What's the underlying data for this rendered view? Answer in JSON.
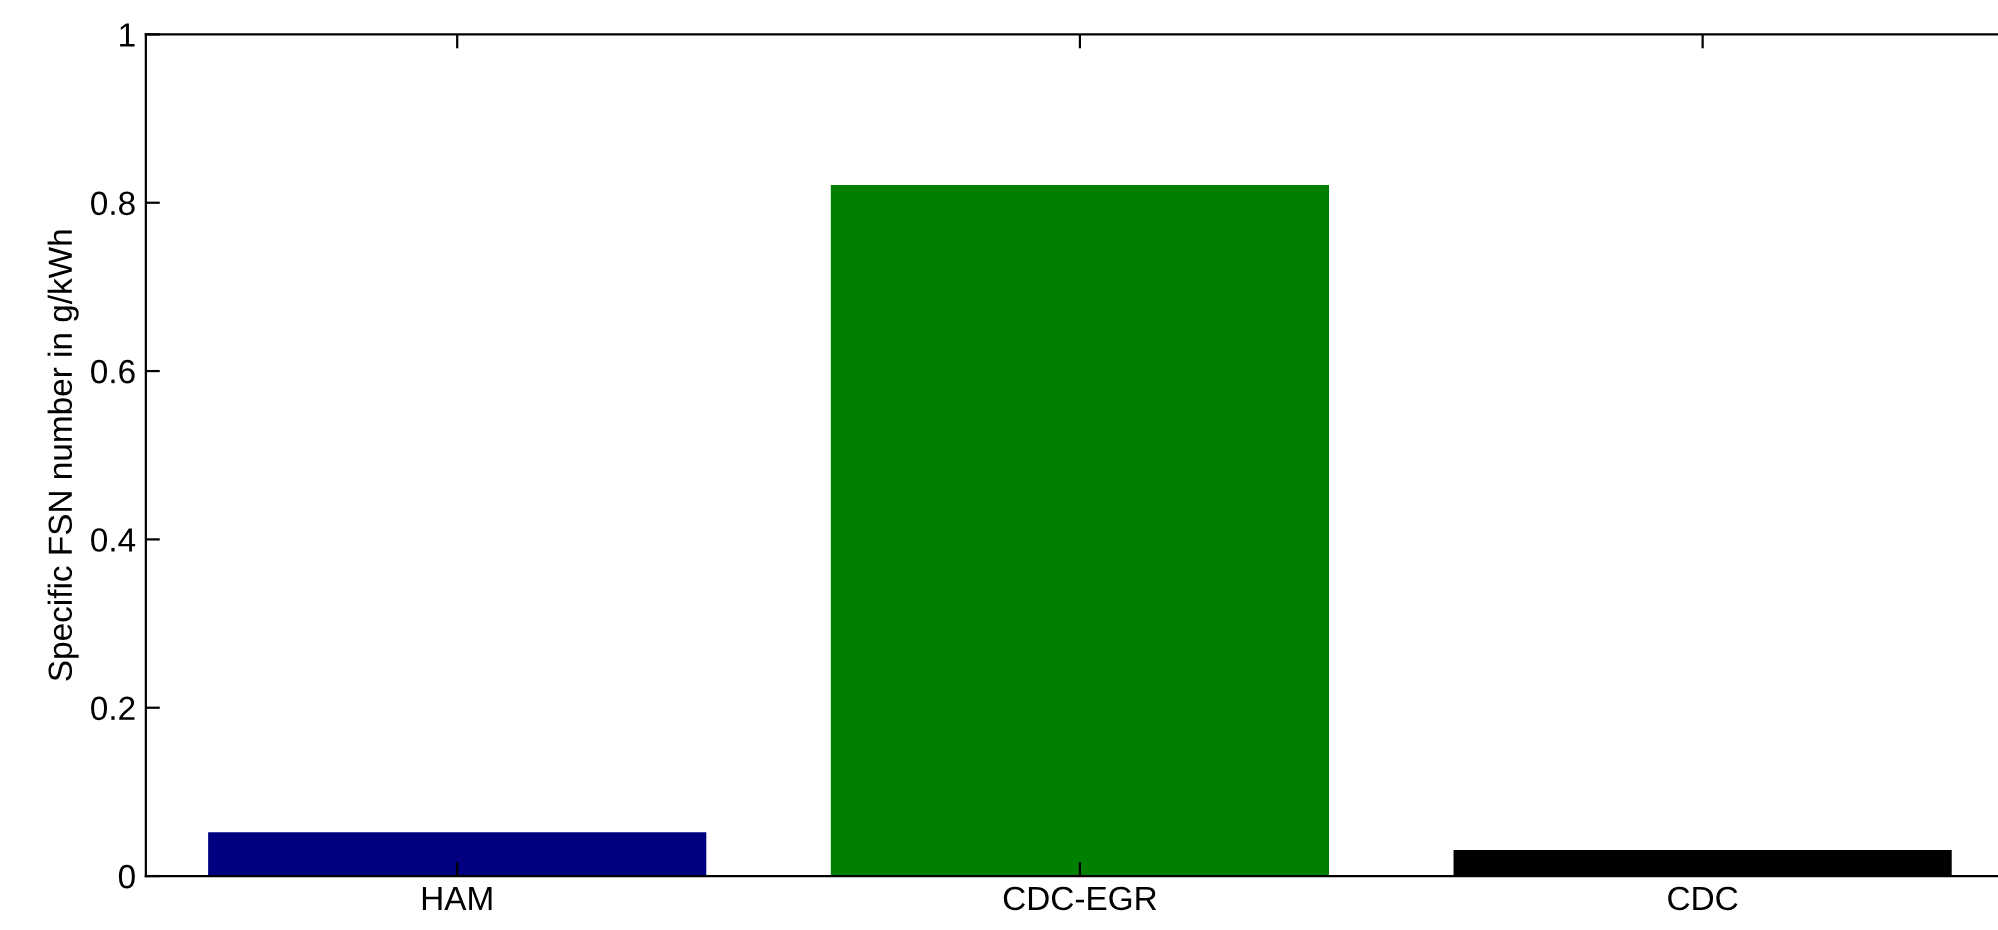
{
  "chart_data": {
    "type": "bar",
    "ylabel": "Specific FSN number in g/kWh",
    "categories": [
      "HAM",
      "CDC-EGR",
      "CDC"
    ],
    "values": [
      0.052,
      0.821,
      0.031
    ],
    "colors": [
      "#000080",
      "#008000",
      "#000000"
    ],
    "ylim": [
      0,
      1
    ],
    "yticks": [
      0,
      0.2,
      0.4,
      0.6,
      0.8,
      1
    ],
    "grid": false
  }
}
